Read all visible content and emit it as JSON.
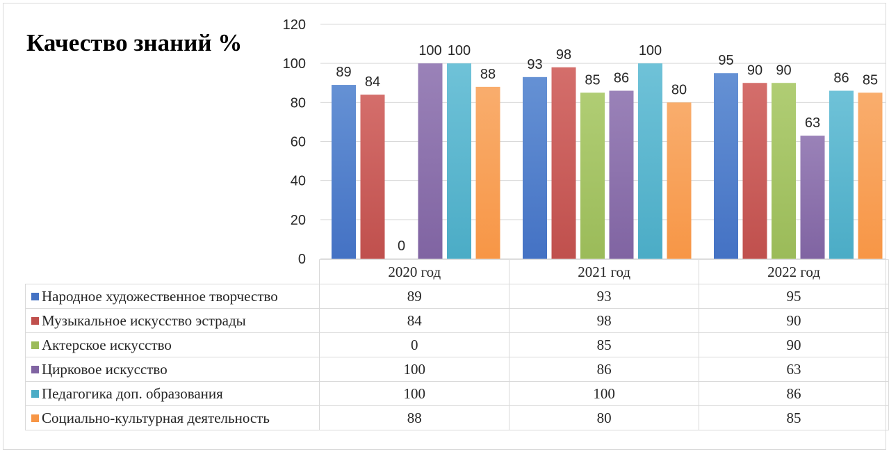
{
  "chart_data": {
    "type": "bar",
    "title": "Качество знаний %",
    "categories": [
      "2020 год",
      "2021 год",
      "2022 год"
    ],
    "ylim": [
      0,
      120
    ],
    "yticks": [
      0,
      20,
      40,
      60,
      80,
      100,
      120
    ],
    "grid": true,
    "legend_placement": "data-table-below",
    "series": [
      {
        "name": "Народное художественное творчество",
        "values": [
          89,
          93,
          95
        ],
        "color": "#4472c4",
        "color_light": "#6591d4"
      },
      {
        "name": "Музыкальное искусство эстрады",
        "values": [
          84,
          98,
          90
        ],
        "color": "#c0504d",
        "color_light": "#d46e6b"
      },
      {
        "name": "Актерское искусство",
        "values": [
          0,
          85,
          90
        ],
        "color": "#9bbb59",
        "color_light": "#b0cd74"
      },
      {
        "name": "Цирковое искусство",
        "values": [
          100,
          86,
          63
        ],
        "color": "#8064a2",
        "color_light": "#9a82b8"
      },
      {
        "name": "Педагогика доп. образования",
        "values": [
          100,
          100,
          86
        ],
        "color": "#4bacc6",
        "color_light": "#6fc2d8"
      },
      {
        "name": "Социально-культурная деятельность",
        "values": [
          88,
          80,
          85
        ],
        "color": "#f79646",
        "color_light": "#f9ad6d"
      }
    ]
  }
}
